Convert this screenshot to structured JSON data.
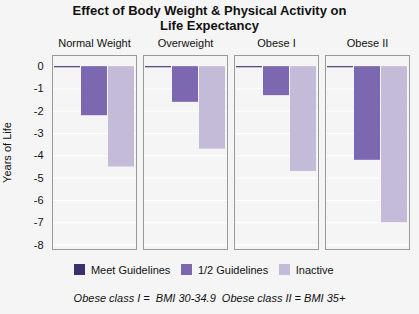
{
  "chart_data": {
    "type": "bar",
    "title": "Effect of Body Weight & Physical Activity on\nLife Expectancy",
    "ylabel": "Years of Life",
    "categories": [
      "Normal Weight",
      "Overweight",
      "Obese I",
      "Obese II"
    ],
    "series": [
      {
        "name": "Meet Guidelines",
        "color": "#3d2f6e",
        "values": [
          -0.05,
          -0.05,
          -0.05,
          -0.05
        ]
      },
      {
        "name": "1/2 Guidelines",
        "color": "#7b68b0",
        "values": [
          -2.2,
          -1.6,
          -1.3,
          -4.2
        ]
      },
      {
        "name": "Inactive",
        "color": "#c4bbd8",
        "values": [
          -4.5,
          -3.7,
          -4.7,
          -7.0
        ]
      }
    ],
    "ylim": [
      -8.2,
      0.5
    ],
    "yticks": [
      0,
      -1,
      -2,
      -3,
      -4,
      -5,
      -6,
      -7,
      -8
    ],
    "grid": true,
    "legend": "bottom",
    "footnote": "Obese class I =  BMI 30-34.9  Obese class II = BMI 35+"
  }
}
